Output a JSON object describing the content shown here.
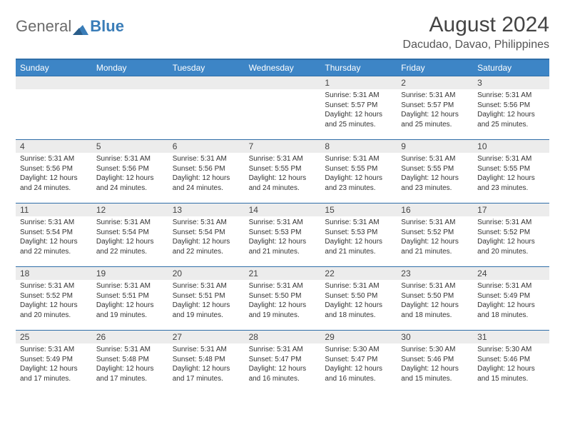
{
  "logo": {
    "text1": "General",
    "text2": "Blue"
  },
  "header": {
    "title": "August 2024",
    "subtitle": "Dacudao, Davao, Philippines"
  },
  "colors": {
    "header_bar": "#3d85c6",
    "week_border": "#2f6ea8",
    "daynum_bg": "#ececec",
    "text": "#333333",
    "title_text": "#444444"
  },
  "daynames": [
    "Sunday",
    "Monday",
    "Tuesday",
    "Wednesday",
    "Thursday",
    "Friday",
    "Saturday"
  ],
  "weeks": [
    [
      {
        "n": "",
        "sunrise": "",
        "sunset": "",
        "daylight": ""
      },
      {
        "n": "",
        "sunrise": "",
        "sunset": "",
        "daylight": ""
      },
      {
        "n": "",
        "sunrise": "",
        "sunset": "",
        "daylight": ""
      },
      {
        "n": "",
        "sunrise": "",
        "sunset": "",
        "daylight": ""
      },
      {
        "n": "1",
        "sunrise": "Sunrise: 5:31 AM",
        "sunset": "Sunset: 5:57 PM",
        "daylight": "Daylight: 12 hours and 25 minutes."
      },
      {
        "n": "2",
        "sunrise": "Sunrise: 5:31 AM",
        "sunset": "Sunset: 5:57 PM",
        "daylight": "Daylight: 12 hours and 25 minutes."
      },
      {
        "n": "3",
        "sunrise": "Sunrise: 5:31 AM",
        "sunset": "Sunset: 5:56 PM",
        "daylight": "Daylight: 12 hours and 25 minutes."
      }
    ],
    [
      {
        "n": "4",
        "sunrise": "Sunrise: 5:31 AM",
        "sunset": "Sunset: 5:56 PM",
        "daylight": "Daylight: 12 hours and 24 minutes."
      },
      {
        "n": "5",
        "sunrise": "Sunrise: 5:31 AM",
        "sunset": "Sunset: 5:56 PM",
        "daylight": "Daylight: 12 hours and 24 minutes."
      },
      {
        "n": "6",
        "sunrise": "Sunrise: 5:31 AM",
        "sunset": "Sunset: 5:56 PM",
        "daylight": "Daylight: 12 hours and 24 minutes."
      },
      {
        "n": "7",
        "sunrise": "Sunrise: 5:31 AM",
        "sunset": "Sunset: 5:55 PM",
        "daylight": "Daylight: 12 hours and 24 minutes."
      },
      {
        "n": "8",
        "sunrise": "Sunrise: 5:31 AM",
        "sunset": "Sunset: 5:55 PM",
        "daylight": "Daylight: 12 hours and 23 minutes."
      },
      {
        "n": "9",
        "sunrise": "Sunrise: 5:31 AM",
        "sunset": "Sunset: 5:55 PM",
        "daylight": "Daylight: 12 hours and 23 minutes."
      },
      {
        "n": "10",
        "sunrise": "Sunrise: 5:31 AM",
        "sunset": "Sunset: 5:55 PM",
        "daylight": "Daylight: 12 hours and 23 minutes."
      }
    ],
    [
      {
        "n": "11",
        "sunrise": "Sunrise: 5:31 AM",
        "sunset": "Sunset: 5:54 PM",
        "daylight": "Daylight: 12 hours and 22 minutes."
      },
      {
        "n": "12",
        "sunrise": "Sunrise: 5:31 AM",
        "sunset": "Sunset: 5:54 PM",
        "daylight": "Daylight: 12 hours and 22 minutes."
      },
      {
        "n": "13",
        "sunrise": "Sunrise: 5:31 AM",
        "sunset": "Sunset: 5:54 PM",
        "daylight": "Daylight: 12 hours and 22 minutes."
      },
      {
        "n": "14",
        "sunrise": "Sunrise: 5:31 AM",
        "sunset": "Sunset: 5:53 PM",
        "daylight": "Daylight: 12 hours and 21 minutes."
      },
      {
        "n": "15",
        "sunrise": "Sunrise: 5:31 AM",
        "sunset": "Sunset: 5:53 PM",
        "daylight": "Daylight: 12 hours and 21 minutes."
      },
      {
        "n": "16",
        "sunrise": "Sunrise: 5:31 AM",
        "sunset": "Sunset: 5:52 PM",
        "daylight": "Daylight: 12 hours and 21 minutes."
      },
      {
        "n": "17",
        "sunrise": "Sunrise: 5:31 AM",
        "sunset": "Sunset: 5:52 PM",
        "daylight": "Daylight: 12 hours and 20 minutes."
      }
    ],
    [
      {
        "n": "18",
        "sunrise": "Sunrise: 5:31 AM",
        "sunset": "Sunset: 5:52 PM",
        "daylight": "Daylight: 12 hours and 20 minutes."
      },
      {
        "n": "19",
        "sunrise": "Sunrise: 5:31 AM",
        "sunset": "Sunset: 5:51 PM",
        "daylight": "Daylight: 12 hours and 19 minutes."
      },
      {
        "n": "20",
        "sunrise": "Sunrise: 5:31 AM",
        "sunset": "Sunset: 5:51 PM",
        "daylight": "Daylight: 12 hours and 19 minutes."
      },
      {
        "n": "21",
        "sunrise": "Sunrise: 5:31 AM",
        "sunset": "Sunset: 5:50 PM",
        "daylight": "Daylight: 12 hours and 19 minutes."
      },
      {
        "n": "22",
        "sunrise": "Sunrise: 5:31 AM",
        "sunset": "Sunset: 5:50 PM",
        "daylight": "Daylight: 12 hours and 18 minutes."
      },
      {
        "n": "23",
        "sunrise": "Sunrise: 5:31 AM",
        "sunset": "Sunset: 5:50 PM",
        "daylight": "Daylight: 12 hours and 18 minutes."
      },
      {
        "n": "24",
        "sunrise": "Sunrise: 5:31 AM",
        "sunset": "Sunset: 5:49 PM",
        "daylight": "Daylight: 12 hours and 18 minutes."
      }
    ],
    [
      {
        "n": "25",
        "sunrise": "Sunrise: 5:31 AM",
        "sunset": "Sunset: 5:49 PM",
        "daylight": "Daylight: 12 hours and 17 minutes."
      },
      {
        "n": "26",
        "sunrise": "Sunrise: 5:31 AM",
        "sunset": "Sunset: 5:48 PM",
        "daylight": "Daylight: 12 hours and 17 minutes."
      },
      {
        "n": "27",
        "sunrise": "Sunrise: 5:31 AM",
        "sunset": "Sunset: 5:48 PM",
        "daylight": "Daylight: 12 hours and 17 minutes."
      },
      {
        "n": "28",
        "sunrise": "Sunrise: 5:31 AM",
        "sunset": "Sunset: 5:47 PM",
        "daylight": "Daylight: 12 hours and 16 minutes."
      },
      {
        "n": "29",
        "sunrise": "Sunrise: 5:30 AM",
        "sunset": "Sunset: 5:47 PM",
        "daylight": "Daylight: 12 hours and 16 minutes."
      },
      {
        "n": "30",
        "sunrise": "Sunrise: 5:30 AM",
        "sunset": "Sunset: 5:46 PM",
        "daylight": "Daylight: 12 hours and 15 minutes."
      },
      {
        "n": "31",
        "sunrise": "Sunrise: 5:30 AM",
        "sunset": "Sunset: 5:46 PM",
        "daylight": "Daylight: 12 hours and 15 minutes."
      }
    ]
  ]
}
